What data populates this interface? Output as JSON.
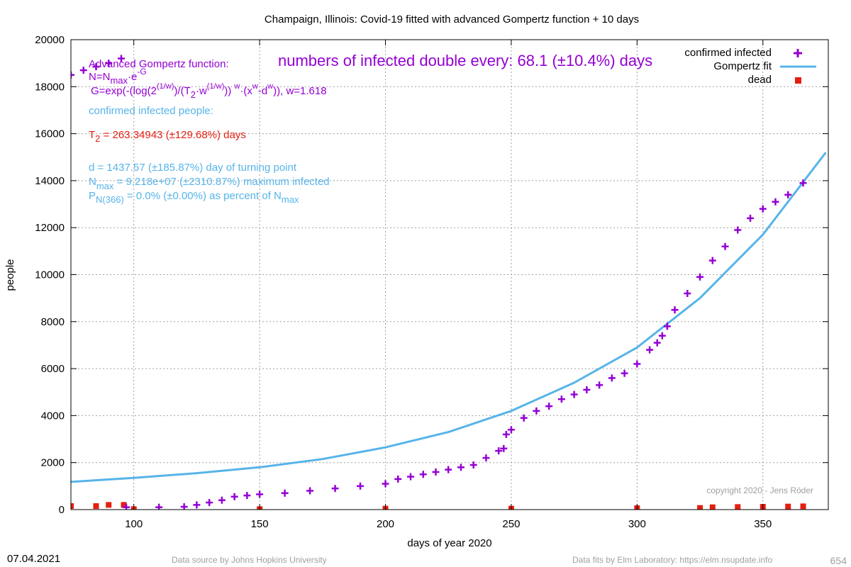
{
  "colors": {
    "confirmed": "#9400d3",
    "fit": "#56b4e9",
    "dead": "#e51e10",
    "annotation_purple": "#9400d3",
    "annotation_blue": "#56b4e9",
    "annotation_red": "#e51e10",
    "grid": "#a0a0a0",
    "copyright": "#a0a0a0",
    "footer": "#a0a0a0"
  },
  "chart_data": {
    "type": "scatter",
    "title": "Champaign,  Illinois: Covid-19 fitted with advanced Gompertz function + 10 days",
    "xlabel": "days of year 2020",
    "ylabel": "people",
    "xlim": [
      75,
      376
    ],
    "ylim": [
      0,
      20000
    ],
    "x_ticks": [
      100,
      150,
      200,
      250,
      300,
      350
    ],
    "y_ticks": [
      0,
      2000,
      4000,
      6000,
      8000,
      10000,
      12000,
      14000,
      16000,
      18000,
      20000
    ],
    "grid": true,
    "legend_position": "top-right",
    "legend": [
      {
        "label": "confirmed infected",
        "symbol": "plus",
        "color": "#9400d3"
      },
      {
        "label": "Gompertz fit",
        "symbol": "line",
        "color": "#56b4e9"
      },
      {
        "label": "dead",
        "symbol": "square",
        "color": "#e51e10"
      }
    ],
    "series": [
      {
        "name": "confirmed infected",
        "kind": "points",
        "color": "#9400d3",
        "x": [
          75,
          80,
          85,
          90,
          95,
          97,
          110,
          120,
          125,
          130,
          135,
          140,
          145,
          150,
          160,
          170,
          180,
          190,
          200,
          205,
          210,
          215,
          220,
          225,
          230,
          235,
          240,
          245,
          247,
          248,
          250,
          255,
          260,
          265,
          270,
          275,
          280,
          285,
          290,
          295,
          300,
          305,
          308,
          310,
          312,
          315,
          320,
          325,
          330,
          335,
          340,
          345,
          350,
          355,
          360,
          366
        ],
        "y": [
          18500,
          18700,
          18850,
          19000,
          19200,
          100,
          100,
          120,
          200,
          300,
          400,
          550,
          600,
          650,
          700,
          800,
          900,
          1000,
          1100,
          1300,
          1400,
          1500,
          1600,
          1700,
          1800,
          1900,
          2200,
          2500,
          2600,
          3200,
          3400,
          3900,
          4200,
          4400,
          4700,
          4900,
          5100,
          5300,
          5600,
          5800,
          6200,
          6800,
          7100,
          7400,
          7800,
          8500,
          9200,
          9900,
          10600,
          11200,
          11900,
          12400,
          12800,
          13100,
          13400,
          13900
        ]
      },
      {
        "name": "Gompertz fit",
        "kind": "line",
        "color": "#56b4e9",
        "x": [
          75,
          100,
          125,
          150,
          175,
          200,
          225,
          250,
          275,
          300,
          325,
          350,
          375
        ],
        "y": [
          1180,
          1350,
          1550,
          1800,
          2150,
          2650,
          3300,
          4200,
          5400,
          6900,
          9000,
          11700,
          15200
        ]
      },
      {
        "name": "dead",
        "kind": "points",
        "color": "#e51e10",
        "x": [
          75,
          85,
          90,
          96,
          100,
          150,
          200,
          250,
          300,
          325,
          330,
          340,
          350,
          360,
          366
        ],
        "y": [
          150,
          150,
          200,
          200,
          20,
          20,
          40,
          40,
          60,
          70,
          100,
          110,
          120,
          130,
          140
        ]
      }
    ]
  },
  "annotations": {
    "doubling": "numbers of infected double every: 68.1 (±10.4%) days",
    "adv_title": "Advanced Gompertz function:",
    "n_eq": {
      "a": "N=N",
      "sub": "max",
      "b": "·e",
      "sup": "-G"
    },
    "g_eq": {
      "a": "G=exp(-(log(2",
      "sup1": "(1/w)",
      "b": ")/(T",
      "sub1": "2",
      "c": "·w",
      "sup2": "(1/w)",
      "d": ")) ",
      "sup3": "w",
      "e": "·(x",
      "sup4": "w",
      "f": "-d",
      "sup5": "w",
      "g": ")), w=1.618"
    },
    "confirmed_label": "confirmed infected people:",
    "t2": {
      "a": "T",
      "sub": "2",
      "b": " = 263.34943 (±129.68%) days"
    },
    "d_line": "d = 1437.57 (±185.87%) day of turning point",
    "nmax": {
      "a": "N",
      "sub": "max",
      "b": " = 9.218e+07 (±2310.87%) maximum infected"
    },
    "p": {
      "a": "P",
      "sub1": "N(366)",
      "b": " = 0.0% (±0.00%) as percent of N",
      "sub2": "max"
    },
    "copyright": "copyright 2020 - Jens Röder"
  },
  "footer": {
    "date": "07.04.2021",
    "source": "Data source by Johns Hopkins University",
    "fits": "Data fits by Elm Laboratory: https://elm.nsupdate.info",
    "code": "654"
  }
}
